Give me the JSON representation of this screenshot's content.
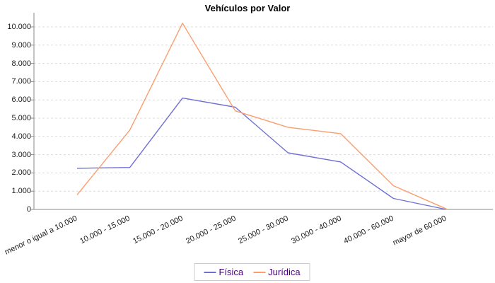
{
  "chart_data": {
    "type": "line",
    "title": "Vehículos por Valor",
    "xlabel": "",
    "ylabel": "",
    "categories": [
      "menor o igual a 10.000",
      "10.000 - 15.000",
      "15.000 - 20.000",
      "20.000 - 25.000",
      "25.000 - 30.000",
      "30.000 - 40.000",
      "40.000 - 60.000",
      "mayor de 60.000"
    ],
    "series": [
      {
        "name": "Física",
        "color": "#7070d4",
        "values": [
          2250,
          2300,
          6100,
          5600,
          3100,
          2600,
          600,
          0
        ]
      },
      {
        "name": "Jurídica",
        "color": "#fa9e6e",
        "values": [
          800,
          4350,
          10200,
          5400,
          4500,
          4150,
          1300,
          30
        ]
      }
    ],
    "y_axis": {
      "min": 0,
      "max": 10000,
      "step": 1000,
      "tick_labels": [
        "0",
        "1.000",
        "2.000",
        "3.000",
        "4.000",
        "5.000",
        "6.000",
        "7.000",
        "8.000",
        "9.000",
        "10.000"
      ]
    },
    "ylim": [
      0,
      10500
    ],
    "grid": "horizontal-dashed",
    "legend_position": "bottom-center",
    "colors": {
      "axis": "#8a8a8a",
      "grid": "#dcdcdc",
      "title": "#000000",
      "tick_label": "#1a1a1a",
      "legend_text": "#4b0082",
      "legend_border": "#cccccc",
      "background": "#ffffff"
    }
  }
}
